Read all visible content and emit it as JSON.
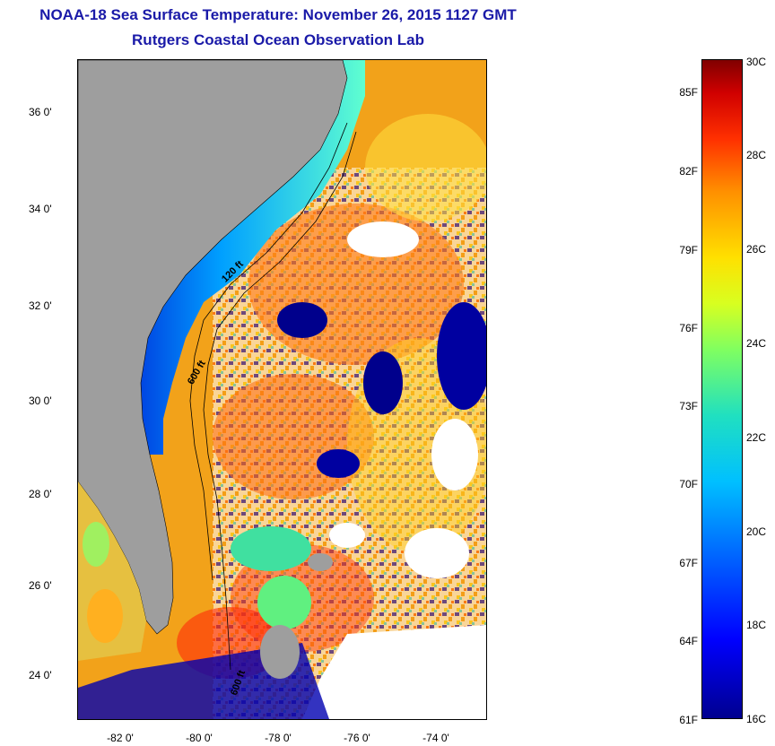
{
  "title": {
    "line1": "NOAA-18 Sea Surface Temperature:  November 26, 2015 1127 GMT",
    "line2": "Rutgers Coastal Ocean Observation Lab"
  },
  "map": {
    "latitude_labels": [
      "36 0'",
      "34 0'",
      "32 0'",
      "30 0'",
      "28 0'",
      "26 0'",
      "24 0'"
    ],
    "longitude_labels": [
      "-82 0'",
      "-80 0'",
      "-78 0'",
      "-76 0'",
      "-74 0'"
    ],
    "contour_labels": [
      "120 ft",
      "600 ft",
      "600 ft"
    ],
    "land_color": "#9e9e9e",
    "no_data_color": "#ffffff"
  },
  "colorbar": {
    "celsius_labels": [
      "30C",
      "28C",
      "26C",
      "24C",
      "22C",
      "20C",
      "18C",
      "16C"
    ],
    "fahrenheit_labels": [
      "85F",
      "82F",
      "79F",
      "76F",
      "73F",
      "70F",
      "67F",
      "64F",
      "61F"
    ],
    "range_celsius": [
      16,
      30
    ],
    "colors": [
      "#00008f",
      "#0000ff",
      "#00c0ff",
      "#80ff60",
      "#ffe000",
      "#ff9000",
      "#d00000",
      "#800000"
    ]
  }
}
